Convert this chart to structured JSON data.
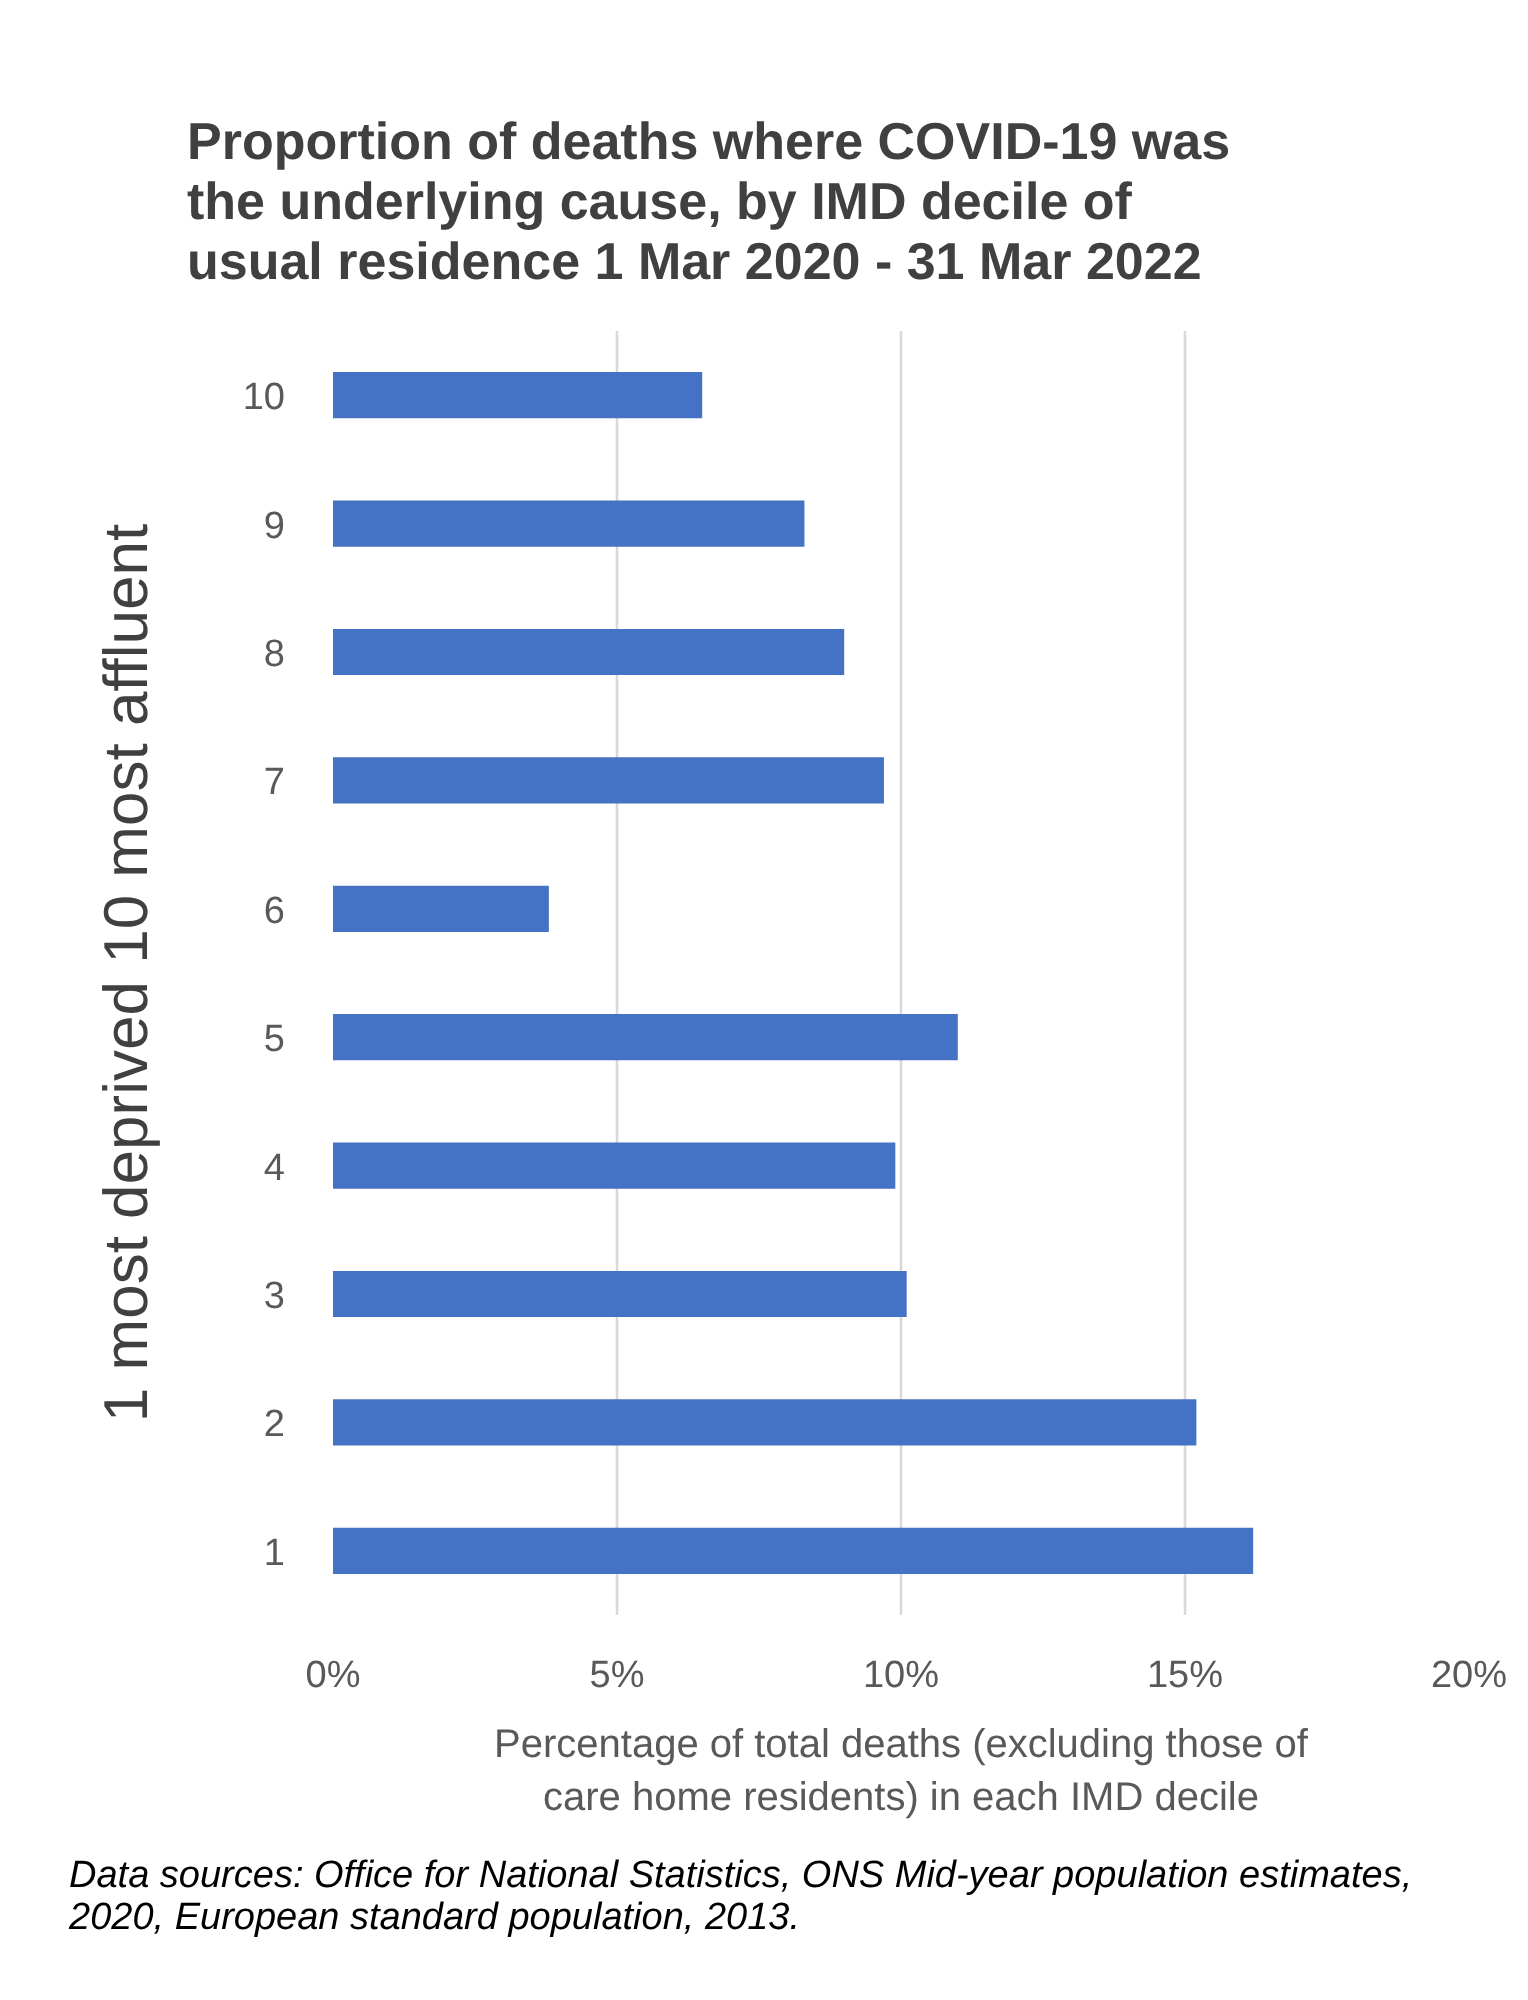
{
  "chart_data": {
    "type": "bar",
    "orientation": "horizontal",
    "title": "Proportion of deaths where COVID-19 was the underlying cause, by IMD decile of usual residence 1 Mar 2020 - 31 Mar 2022",
    "xlabel": "Percentage of total deaths (excluding those of care home residents) in each IMD decile",
    "ylabel": "1 most deprived 10 most affluent",
    "categories": [
      "10",
      "9",
      "8",
      "7",
      "6",
      "5",
      "4",
      "3",
      "2",
      "1"
    ],
    "values": [
      6.5,
      8.3,
      9.0,
      9.7,
      3.8,
      11.0,
      9.9,
      10.1,
      15.2,
      16.2
    ],
    "color": "#4472c4",
    "xlim": [
      0,
      20
    ],
    "xticks": [
      {
        "value": 0,
        "label": "0%"
      },
      {
        "value": 5,
        "label": "5%"
      },
      {
        "value": 10,
        "label": "10%"
      },
      {
        "value": 15,
        "label": "15%"
      },
      {
        "value": 20,
        "label": "20%"
      }
    ],
    "grid": "x",
    "annotations": [
      "Data sources: Office for National Statistics, ONS Mid-year population estimates, 2020, European standard population, 2013."
    ]
  }
}
